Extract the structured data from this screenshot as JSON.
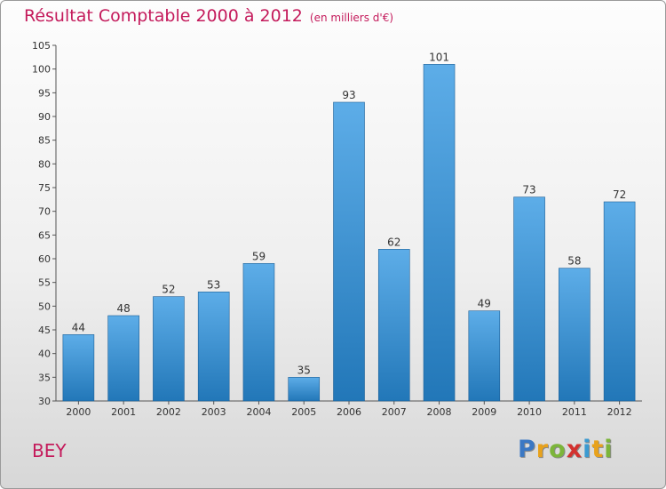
{
  "colors": {
    "title": "#c41a5b",
    "bar_light": "#5dade8",
    "bar_dark": "#2277b8"
  },
  "title": "Résultat Comptable 2000 à 2012",
  "subtitle": "(en milliers d'€)",
  "commune": "BEY",
  "brand": {
    "text": "Proxiti",
    "letters": [
      {
        "ch": "P",
        "color": "#3b78c4"
      },
      {
        "ch": "r",
        "color": "#e8a21c"
      },
      {
        "ch": "o",
        "color": "#7cb53a"
      },
      {
        "ch": "x",
        "color": "#d3312f"
      },
      {
        "ch": "i",
        "color": "#3b9ad1"
      },
      {
        "ch": "t",
        "color": "#e8a21c"
      },
      {
        "ch": "i",
        "color": "#7cb53a"
      }
    ]
  },
  "chart_data": {
    "type": "bar",
    "title": "Résultat Comptable 2000 à 2012",
    "subtitle": "(en milliers d'€)",
    "xlabel": "",
    "ylabel": "",
    "categories": [
      "2000",
      "2001",
      "2002",
      "2003",
      "2004",
      "2005",
      "2006",
      "2007",
      "2008",
      "2009",
      "2010",
      "2011",
      "2012"
    ],
    "values": [
      44,
      48,
      52,
      53,
      59,
      35,
      93,
      62,
      101,
      49,
      73,
      58,
      72
    ],
    "ylim": [
      30,
      105
    ],
    "yticks": [
      30,
      35,
      40,
      45,
      50,
      55,
      60,
      65,
      70,
      75,
      80,
      85,
      90,
      95,
      100,
      105
    ],
    "grid": false,
    "data_labels": true
  }
}
